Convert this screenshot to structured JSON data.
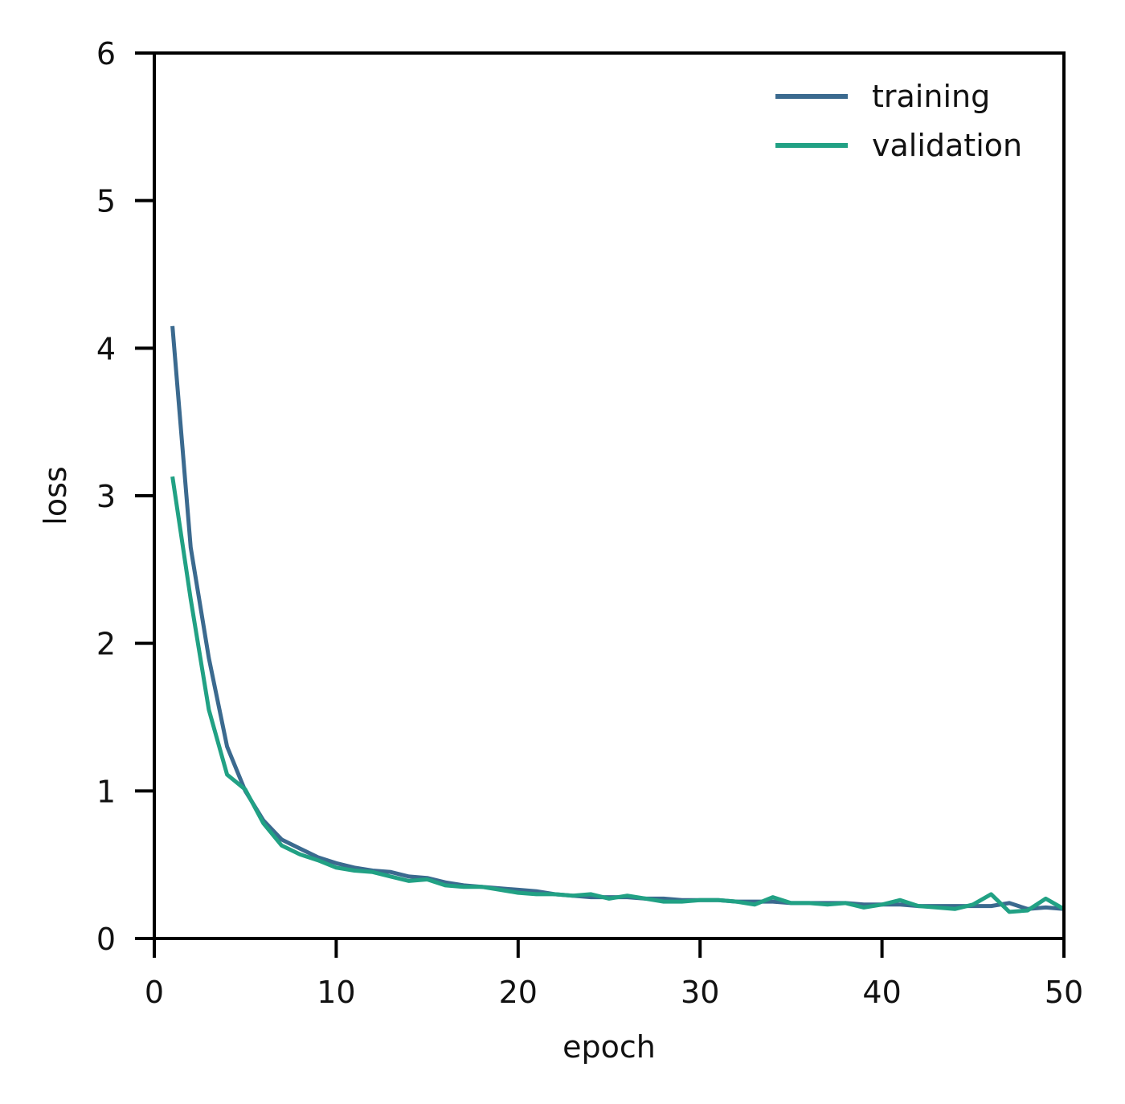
{
  "chart_data": {
    "type": "line",
    "title": "",
    "xlabel": "epoch",
    "ylabel": "loss",
    "xlim": [
      0,
      50
    ],
    "ylim": [
      0,
      6
    ],
    "xticks": [
      0,
      10,
      20,
      30,
      40,
      50
    ],
    "yticks": [
      0,
      1,
      2,
      3,
      4,
      5,
      6
    ],
    "grid": false,
    "legend": "top-right",
    "x": [
      1,
      2,
      3,
      4,
      5,
      6,
      7,
      8,
      9,
      10,
      11,
      12,
      13,
      14,
      15,
      16,
      17,
      18,
      19,
      20,
      21,
      22,
      23,
      24,
      25,
      26,
      27,
      28,
      29,
      30,
      31,
      32,
      33,
      34,
      35,
      36,
      37,
      38,
      39,
      40,
      41,
      42,
      43,
      44,
      45,
      46,
      47,
      48,
      49,
      50
    ],
    "series": [
      {
        "name": "training",
        "color": "#3b6a8f",
        "values": [
          4.15,
          2.65,
          1.9,
          1.3,
          1.0,
          0.8,
          0.67,
          0.61,
          0.55,
          0.51,
          0.48,
          0.46,
          0.45,
          0.42,
          0.41,
          0.38,
          0.36,
          0.35,
          0.34,
          0.33,
          0.32,
          0.3,
          0.29,
          0.28,
          0.28,
          0.28,
          0.27,
          0.27,
          0.26,
          0.26,
          0.26,
          0.25,
          0.25,
          0.25,
          0.24,
          0.24,
          0.24,
          0.24,
          0.23,
          0.23,
          0.23,
          0.22,
          0.22,
          0.22,
          0.22,
          0.22,
          0.24,
          0.2,
          0.21,
          0.2
        ]
      },
      {
        "name": "validation",
        "color": "#21a184",
        "values": [
          3.13,
          2.3,
          1.55,
          1.11,
          1.01,
          0.78,
          0.63,
          0.57,
          0.53,
          0.48,
          0.46,
          0.45,
          0.42,
          0.39,
          0.4,
          0.36,
          0.35,
          0.35,
          0.33,
          0.31,
          0.3,
          0.3,
          0.29,
          0.3,
          0.27,
          0.29,
          0.27,
          0.25,
          0.25,
          0.26,
          0.26,
          0.25,
          0.23,
          0.28,
          0.24,
          0.24,
          0.23,
          0.24,
          0.21,
          0.23,
          0.26,
          0.22,
          0.21,
          0.2,
          0.23,
          0.3,
          0.18,
          0.19,
          0.27,
          0.2
        ]
      }
    ]
  }
}
